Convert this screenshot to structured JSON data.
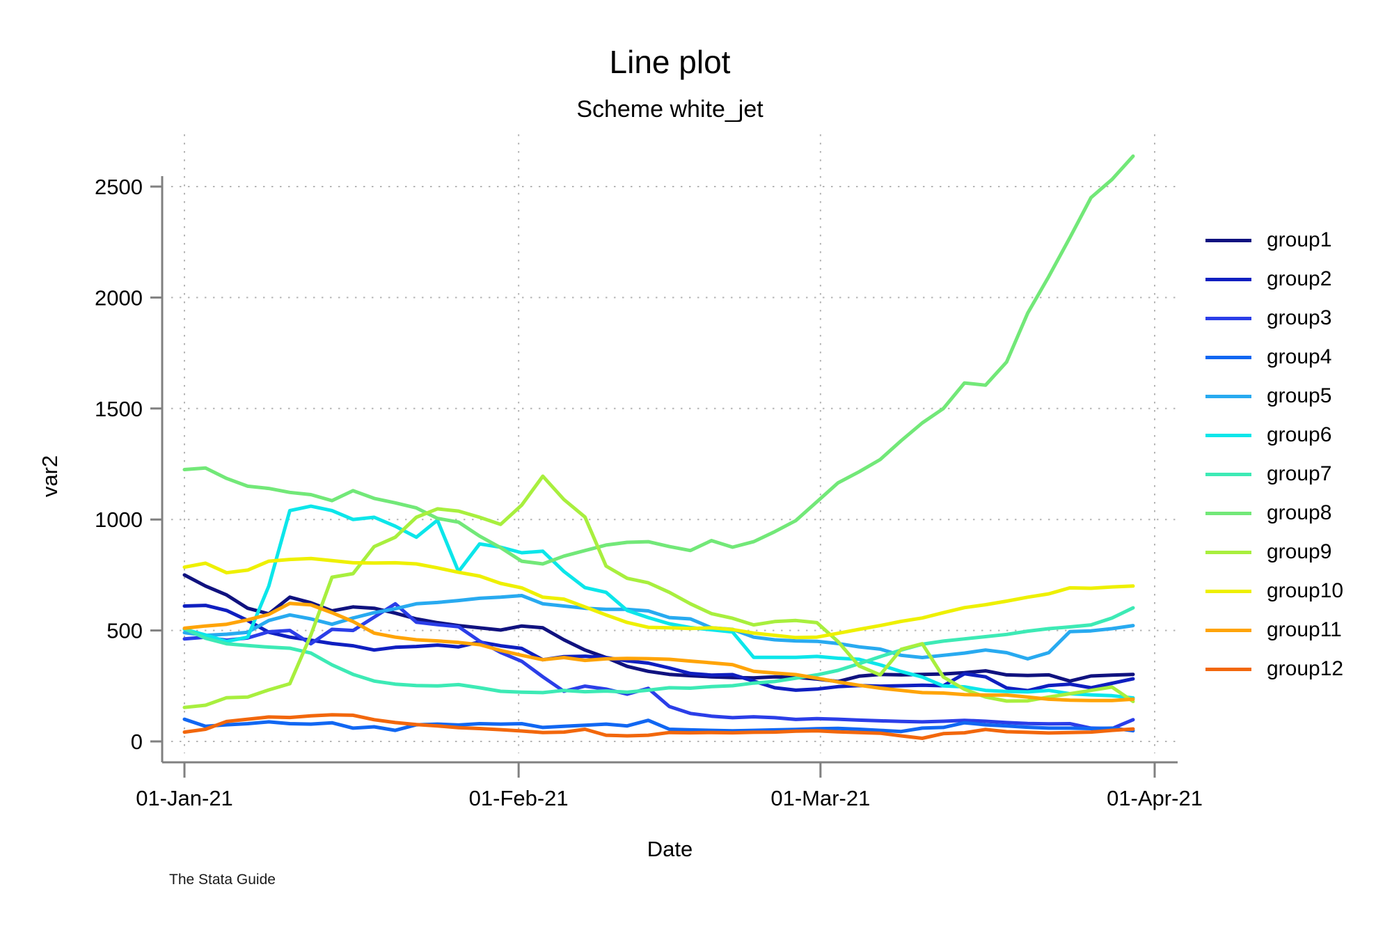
{
  "footer": {
    "watermark": "The Stata Guide"
  },
  "chart_data": {
    "type": "line",
    "title": "Line plot",
    "subtitle": "Scheme white_jet",
    "xlabel": "Date",
    "ylabel": "var2",
    "x_axis": {
      "unit": "date",
      "start": "01-Jan-21",
      "end": "01-Apr-21",
      "span_days": 88,
      "ticks": [
        {
          "day": 0,
          "label": "01-Jan-21"
        },
        {
          "day": 31,
          "label": "01-Feb-21"
        },
        {
          "day": 59,
          "label": "01-Mar-21"
        },
        {
          "day": 90,
          "label": "01-Apr-21"
        }
      ]
    },
    "y_axis": {
      "ticks": [
        0,
        500,
        1000,
        1500,
        2000,
        2500
      ],
      "lim": [
        0,
        2700
      ]
    },
    "grid": {
      "horizontal": true,
      "vertical": true,
      "style": "dotted",
      "color": "#b4b4b4"
    },
    "axis_color": "#808080",
    "legend_position": "right-outside",
    "sample_step_days": 1.956,
    "series": [
      {
        "name": "group1",
        "color": "#10127f",
        "values": [
          750,
          700,
          660,
          600,
          575,
          650,
          625,
          588,
          606,
          600,
          578,
          552,
          535,
          522,
          512,
          502,
          520,
          512,
          458,
          412,
          378,
          338,
          316,
          302,
          296,
          291,
          288,
          286,
          291,
          289,
          281,
          270,
          294,
          302,
          300,
          302,
          304,
          310,
          318,
          300,
          297,
          300,
          272,
          295,
          299,
          302
        ]
      },
      {
        "name": "group2",
        "color": "#0f1fc0",
        "values": [
          610,
          613,
          590,
          545,
          492,
          470,
          456,
          441,
          431,
          412,
          424,
          428,
          434,
          426,
          448,
          431,
          419,
          368,
          382,
          384,
          378,
          363,
          353,
          331,
          306,
          299,
          301,
          272,
          242,
          231,
          236,
          247,
          252,
          249,
          251,
          253,
          251,
          305,
          291,
          241,
          229,
          252,
          258,
          242,
          262,
          282
        ]
      },
      {
        "name": "group3",
        "color": "#2b3ee8",
        "values": [
          462,
          470,
          456,
          466,
          494,
          500,
          440,
          505,
          500,
          560,
          620,
          537,
          526,
          517,
          452,
          401,
          361,
          291,
          226,
          249,
          236,
          213,
          239,
          157,
          126,
          114,
          107,
          111,
          107,
          99,
          103,
          100,
          96,
          93,
          90,
          88,
          91,
          95,
          91,
          85,
          81,
          79,
          80,
          60,
          58,
          98
        ]
      },
      {
        "name": "group4",
        "color": "#1167f2",
        "values": [
          100,
          68,
          75,
          80,
          88,
          80,
          78,
          84,
          60,
          66,
          50,
          75,
          78,
          74,
          80,
          78,
          80,
          63,
          68,
          73,
          78,
          70,
          95,
          55,
          52,
          50,
          48,
          50,
          52,
          54,
          57,
          59,
          55,
          50,
          45,
          60,
          63,
          84,
          75,
          70,
          64,
          60,
          60,
          58,
          60,
          48
        ]
      },
      {
        "name": "group5",
        "color": "#28aaf0",
        "values": [
          490,
          478,
          483,
          492,
          545,
          570,
          552,
          528,
          556,
          580,
          598,
          620,
          626,
          635,
          645,
          650,
          657,
          620,
          610,
          600,
          595,
          595,
          588,
          558,
          552,
          512,
          505,
          470,
          458,
          453,
          451,
          441,
          426,
          416,
          388,
          378,
          388,
          398,
          412,
          400,
          372,
          400,
          495,
          498,
          508,
          522
        ]
      },
      {
        "name": "group6",
        "color": "#0ce6ea",
        "values": [
          505,
          480,
          450,
          470,
          700,
          1040,
          1060,
          1040,
          1000,
          1010,
          970,
          920,
          997,
          765,
          890,
          875,
          850,
          857,
          766,
          693,
          672,
          590,
          558,
          530,
          513,
          503,
          493,
          379,
          379,
          379,
          383,
          375,
          370,
          345,
          315,
          290,
          250,
          246,
          230,
          225,
          223,
          230,
          215,
          210,
          206,
          196
        ]
      },
      {
        "name": "group7",
        "color": "#3deab5",
        "values": [
          508,
          465,
          440,
          432,
          425,
          420,
          398,
          345,
          302,
          272,
          258,
          252,
          250,
          256,
          242,
          226,
          222,
          220,
          230,
          224,
          227,
          222,
          231,
          242,
          240,
          247,
          251,
          263,
          270,
          285,
          300,
          320,
          350,
          382,
          412,
          438,
          452,
          462,
          472,
          482,
          497,
          508,
          516,
          525,
          556,
          602
        ]
      },
      {
        "name": "group8",
        "color": "#72e878",
        "values": [
          1225,
          1232,
          1185,
          1150,
          1140,
          1122,
          1112,
          1085,
          1130,
          1095,
          1075,
          1052,
          1005,
          988,
          925,
          873,
          812,
          800,
          835,
          860,
          885,
          897,
          900,
          878,
          860,
          905,
          875,
          900,
          945,
          995,
          1080,
          1165,
          1215,
          1270,
          1355,
          1435,
          1500,
          1615,
          1605,
          1710,
          1930,
          2095,
          2270,
          2450,
          2532,
          2637
        ]
      },
      {
        "name": "group9",
        "color": "#a8ef3e",
        "values": [
          153,
          163,
          197,
          200,
          232,
          260,
          480,
          740,
          756,
          878,
          920,
          1010,
          1048,
          1038,
          1010,
          978,
          1065,
          1195,
          1090,
          1011,
          790,
          735,
          715,
          672,
          620,
          576,
          555,
          525,
          540,
          545,
          535,
          450,
          340,
          300,
          415,
          440,
          290,
          235,
          200,
          182,
          183,
          200,
          215,
          230,
          245,
          180
        ]
      },
      {
        "name": "group10",
        "color": "#eef000",
        "values": [
          785,
          803,
          760,
          772,
          812,
          820,
          824,
          815,
          805,
          804,
          805,
          800,
          782,
          762,
          745,
          712,
          692,
          650,
          641,
          606,
          570,
          536,
          514,
          512,
          509,
          512,
          504,
          488,
          478,
          468,
          470,
          487,
          505,
          522,
          541,
          556,
          580,
          603,
          616,
          632,
          650,
          665,
          692,
          690,
          696,
          700
        ]
      },
      {
        "name": "group11",
        "color": "#ffa408",
        "values": [
          510,
          520,
          528,
          548,
          572,
          622,
          615,
          580,
          540,
          488,
          470,
          458,
          453,
          446,
          436,
          410,
          388,
          368,
          378,
          365,
          372,
          374,
          373,
          370,
          362,
          354,
          346,
          316,
          308,
          301,
          285,
          268,
          253,
          240,
          230,
          220,
          218,
          211,
          209,
          209,
          200,
          190,
          186,
          184,
          184,
          190
        ]
      },
      {
        "name": "group12",
        "color": "#f2670c",
        "values": [
          42,
          55,
          90,
          100,
          110,
          108,
          115,
          120,
          118,
          98,
          85,
          76,
          70,
          62,
          58,
          53,
          47,
          40,
          42,
          55,
          28,
          25,
          28,
          40,
          39,
          40,
          39,
          41,
          42,
          46,
          48,
          43,
          40,
          37,
          25,
          14,
          35,
          39,
          54,
          44,
          41,
          38,
          40,
          42,
          50,
          56
        ]
      }
    ]
  }
}
